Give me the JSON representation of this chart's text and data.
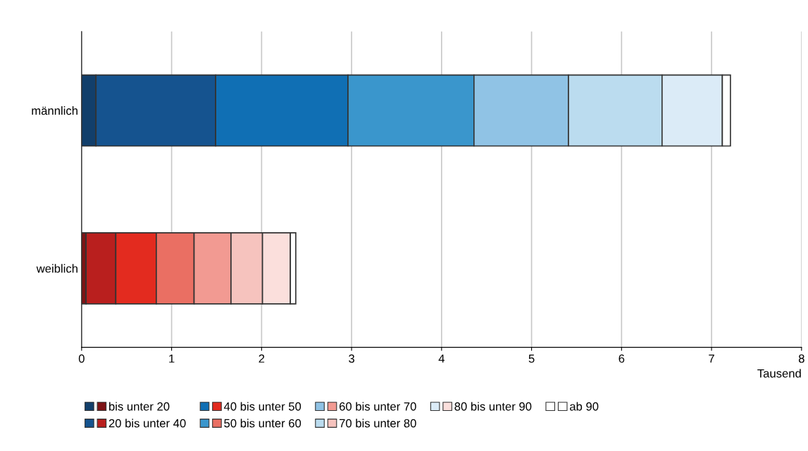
{
  "chart_data": {
    "type": "bar",
    "orientation": "horizontal",
    "stacked": true,
    "categories": [
      "männlich",
      "weiblich"
    ],
    "xlabel": "Tausend",
    "xlim": [
      0,
      8
    ],
    "xticks": [
      0,
      1,
      2,
      3,
      4,
      5,
      6,
      7,
      8
    ],
    "grid": "x",
    "legend": "bottom",
    "series": [
      {
        "name": "bis unter 20",
        "colors": [
          "#123f6b",
          "#7d1416"
        ],
        "values": [
          0.16,
          0.05
        ]
      },
      {
        "name": "20 bis unter 40",
        "colors": [
          "#15538f",
          "#b91f1e"
        ],
        "values": [
          1.33,
          0.33
        ]
      },
      {
        "name": "40 bis unter 50",
        "colors": [
          "#106fb4",
          "#e32b1f"
        ],
        "values": [
          1.47,
          0.45
        ]
      },
      {
        "name": "50 bis unter 60",
        "colors": [
          "#3a96cc",
          "#ea6f63"
        ],
        "values": [
          1.4,
          0.42
        ]
      },
      {
        "name": "60 bis unter 70",
        "colors": [
          "#90c3e5",
          "#f29a92"
        ],
        "values": [
          1.05,
          0.41
        ]
      },
      {
        "name": "70 bis unter 80",
        "colors": [
          "#bbdcef",
          "#f6c3be"
        ],
        "values": [
          1.04,
          0.35
        ]
      },
      {
        "name": "80 bis unter 90",
        "colors": [
          "#dbebf7",
          "#fbdfdc"
        ],
        "values": [
          0.67,
          0.31
        ]
      },
      {
        "name": "ab 90",
        "colors": [
          "#ffffff",
          "#ffffff"
        ],
        "values": [
          0.09,
          0.06
        ]
      }
    ]
  }
}
